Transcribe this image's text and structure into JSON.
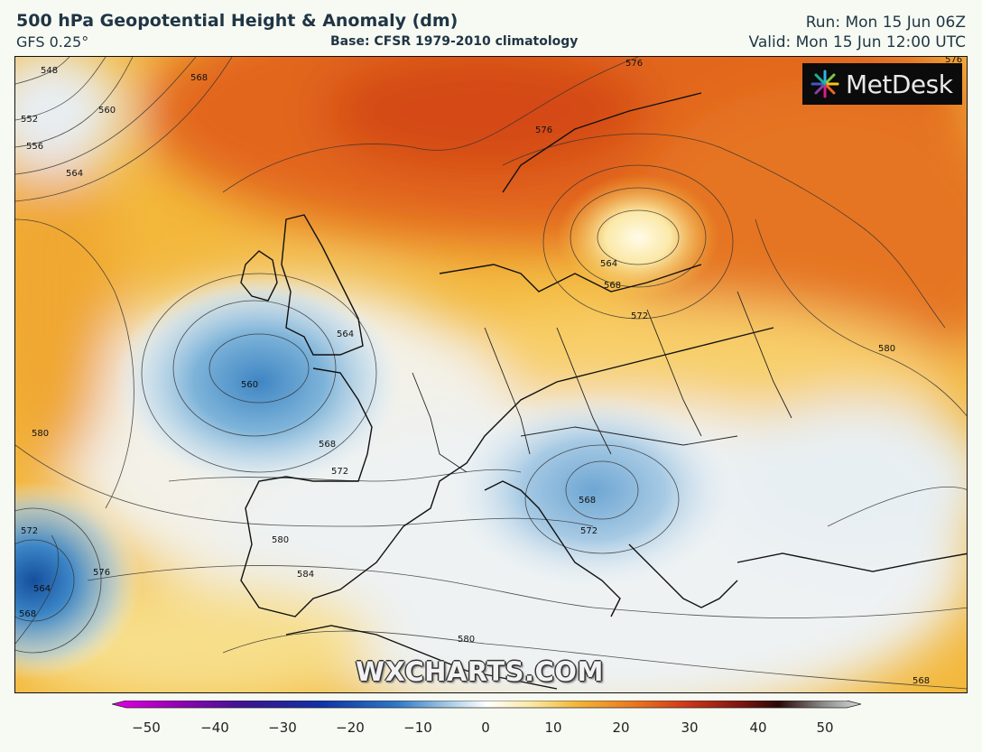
{
  "header": {
    "title": "500 hPa Geopotential Height & Anomaly (dm)",
    "model": "GFS 0.25°",
    "base": "Base: CFSR 1979-2010 climatology",
    "run": "Run: Mon 15 Jun 06Z",
    "valid": "Valid: Mon 15 Jun 12:00 UTC"
  },
  "logo": {
    "text": "MetDesk",
    "icon": "metdesk-starburst-logo"
  },
  "watermark": "WXCHARTS.COM",
  "map": {
    "region": "Europe",
    "contour_labels": [
      "548",
      "552",
      "556",
      "560",
      "564",
      "568",
      "576",
      "576",
      "564",
      "568",
      "572",
      "580",
      "580",
      "560",
      "568",
      "572",
      "564",
      "572",
      "568",
      "580",
      "584",
      "572",
      "576",
      "564",
      "568",
      "580",
      "568",
      "576"
    ],
    "anomaly_centres": [
      {
        "type": "low",
        "label": "560"
      },
      {
        "type": "low",
        "label": "568"
      },
      {
        "type": "low",
        "label": "564"
      },
      {
        "type": "high",
        "label": "576"
      }
    ]
  },
  "colorbar": {
    "ticks": [
      "−50",
      "−40",
      "−30",
      "−20",
      "−10",
      "0",
      "10",
      "20",
      "30",
      "40",
      "50"
    ],
    "colors": [
      "#d000d0",
      "#6a00a0",
      "#2a1a90",
      "#1030a8",
      "#2f70c0",
      "#79aed8",
      "#cfe3ef",
      "#ffffff",
      "#fbedb0",
      "#f4c043",
      "#eb8a1e",
      "#d9501b",
      "#9a1a10",
      "#3a0a08",
      "#888888",
      "#cfcfcf"
    ]
  }
}
